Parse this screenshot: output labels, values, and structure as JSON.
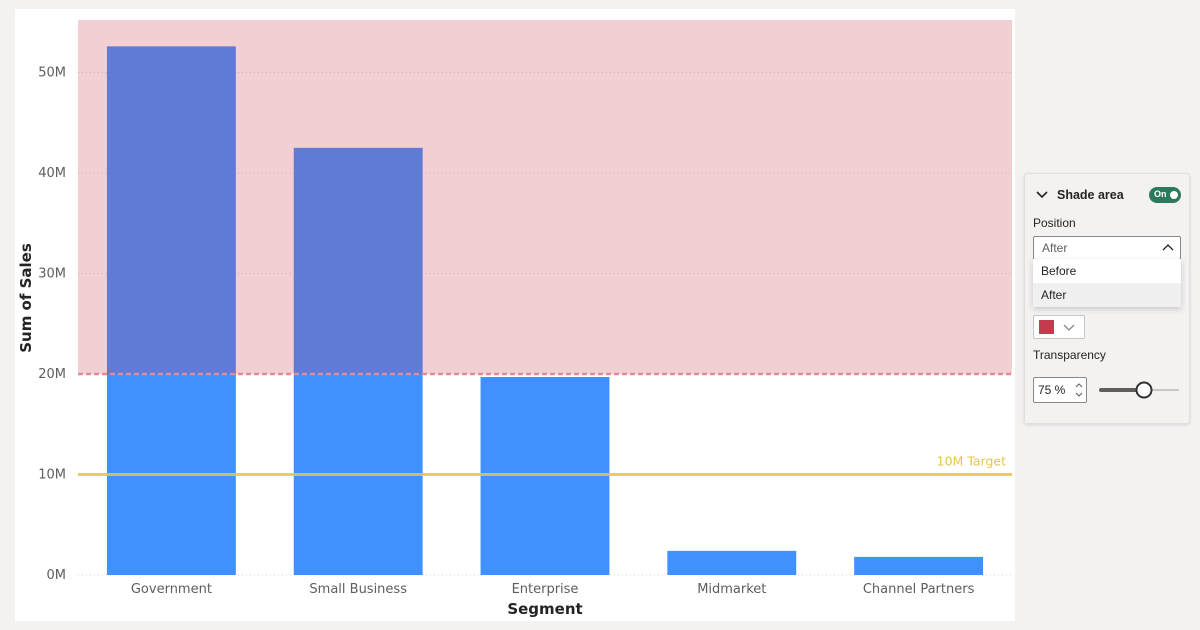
{
  "chart_data": {
    "type": "bar",
    "categories": [
      "Government",
      "Small Business",
      "Enterprise",
      "Midmarket",
      "Channel Partners"
    ],
    "values": [
      52.6,
      42.5,
      19.7,
      2.4,
      1.8
    ],
    "unit": "M",
    "xlabel": "Segment",
    "ylabel": "Sum of Sales",
    "yticks": [
      "0M",
      "10M",
      "20M",
      "30M",
      "40M",
      "50M"
    ],
    "ytick_values": [
      0,
      10,
      20,
      30,
      40,
      50
    ],
    "ylim": [
      0,
      55
    ],
    "grid": true,
    "bar_color": "#4091ff",
    "reference_lines": [
      {
        "value": 20,
        "label": "",
        "color": "#e48a96",
        "style": "dashed",
        "shade": "after",
        "shade_color": "#c43b4b",
        "transparency": 75
      },
      {
        "value": 10,
        "label": "10M Target",
        "color": "#e6c54a",
        "style": "solid"
      }
    ]
  },
  "format_pane": {
    "section_title": "Shade area",
    "toggle_label": "On",
    "position_label": "Position",
    "position_value": "After",
    "position_options": [
      "Before",
      "After"
    ],
    "color_swatch": "#c43b4b",
    "transparency_label": "Transparency",
    "transparency_value": "75 %",
    "transparency_level": 75
  }
}
